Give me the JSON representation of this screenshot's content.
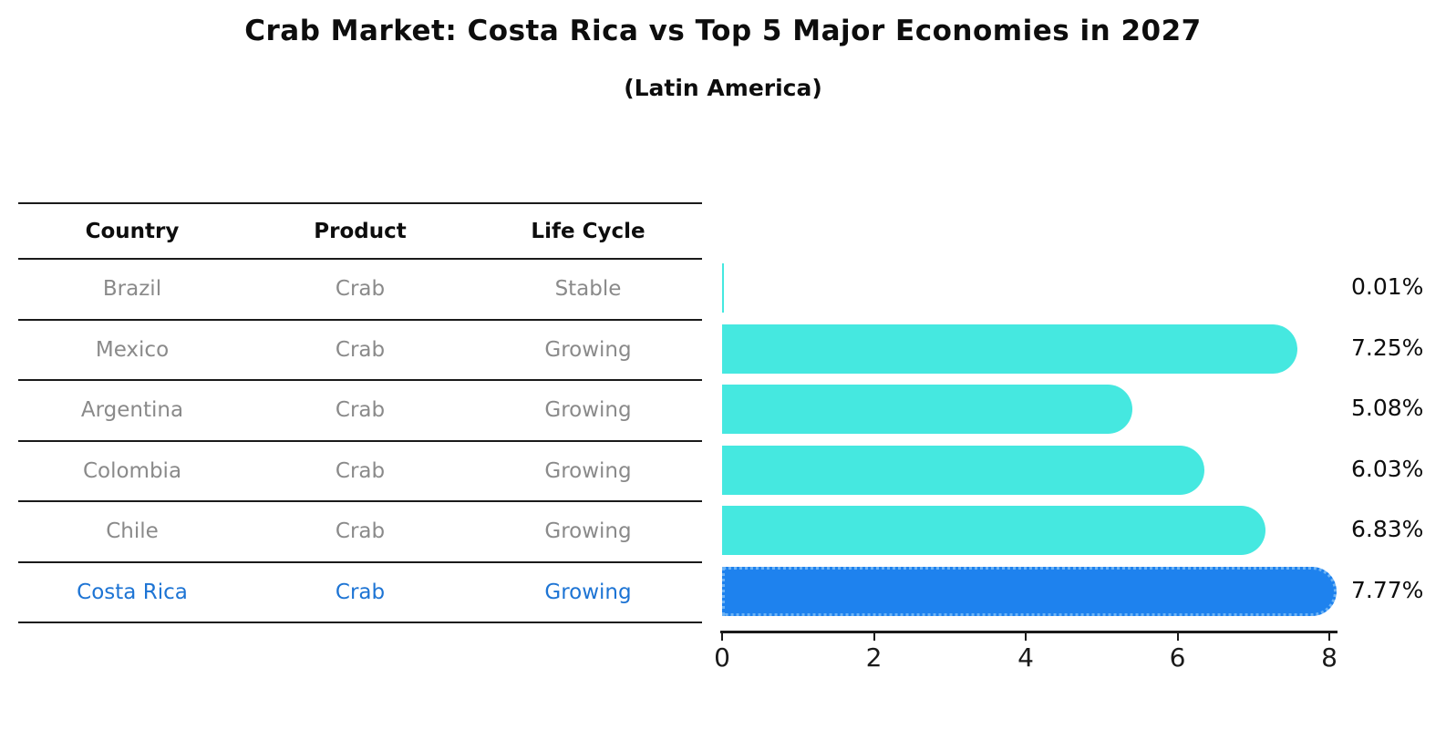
{
  "title": "Crab Market: Costa Rica vs Top 5 Major Economies in 2027",
  "subtitle": "(Latin America)",
  "table": {
    "headers": [
      "Country",
      "Product",
      "Life Cycle"
    ],
    "rows": [
      {
        "country": "Brazil",
        "product": "Crab",
        "life_cycle": "Stable",
        "highlight": false
      },
      {
        "country": "Mexico",
        "product": "Crab",
        "life_cycle": "Growing",
        "highlight": false
      },
      {
        "country": "Argentina",
        "product": "Crab",
        "life_cycle": "Growing",
        "highlight": false
      },
      {
        "country": "Colombia",
        "product": "Crab",
        "life_cycle": "Growing",
        "highlight": false
      },
      {
        "country": "Chile",
        "product": "Crab",
        "life_cycle": "Growing",
        "highlight": false
      },
      {
        "country": "Costa Rica",
        "product": "Crab",
        "life_cycle": "Growing",
        "highlight": true
      }
    ]
  },
  "chart_data": {
    "type": "bar",
    "orientation": "horizontal",
    "title": "Crab Market: Costa Rica vs Top 5 Major Economies in 2027",
    "subtitle": "(Latin America)",
    "categories": [
      "Brazil",
      "Mexico",
      "Argentina",
      "Colombia",
      "Chile",
      "Costa Rica"
    ],
    "values": [
      0.01,
      7.25,
      5.08,
      6.03,
      6.83,
      7.77
    ],
    "value_labels": [
      "0.01%",
      "7.25%",
      "5.08%",
      "6.03%",
      "6.83%",
      "7.77%"
    ],
    "xlim": [
      0,
      8
    ],
    "x_ticks": [
      "0",
      "2",
      "4",
      "6",
      "8"
    ],
    "x_tick_values": [
      0,
      2,
      4,
      6,
      8
    ],
    "highlight_category": "Costa Rica",
    "grid": false,
    "legend": false,
    "colors": {
      "bar_default": "#45e8e0",
      "bar_highlight": "#1e82ee",
      "highlight_text": "#1d74d4",
      "row_text": "#8a8a8a",
      "header_text": "#0d0d0d",
      "axis": "#1a1a1a"
    }
  }
}
